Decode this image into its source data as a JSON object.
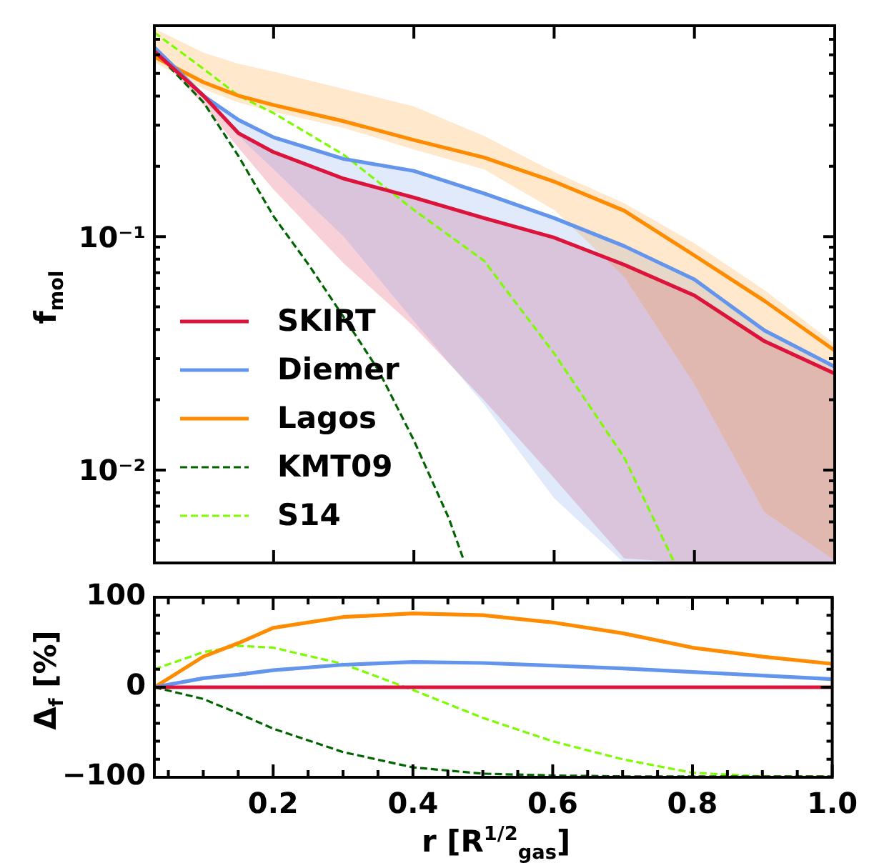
{
  "chart_data": [
    {
      "type": "line",
      "ylabel": "f$_{mol}$",
      "log": "y",
      "ylim": [
        0.004,
        0.8
      ],
      "yticks": [
        {
          "value": 0.005,
          "label": null
        },
        {
          "value": 0.006,
          "label": null
        },
        {
          "value": 0.007,
          "label": null
        },
        {
          "value": 0.008,
          "label": null
        },
        {
          "value": 0.009,
          "label": null
        },
        {
          "value": 0.01,
          "label": "10⁻²"
        },
        {
          "value": 0.02,
          "label": null
        },
        {
          "value": 0.03,
          "label": null
        },
        {
          "value": 0.04,
          "label": null
        },
        {
          "value": 0.05,
          "label": null
        },
        {
          "value": 0.06,
          "label": null
        },
        {
          "value": 0.07,
          "label": null
        },
        {
          "value": 0.08,
          "label": null
        },
        {
          "value": 0.09,
          "label": null
        },
        {
          "value": 0.1,
          "label": "10⁻¹"
        },
        {
          "value": 0.2,
          "label": null
        },
        {
          "value": 0.3,
          "label": null
        },
        {
          "value": 0.4,
          "label": null
        },
        {
          "value": 0.5,
          "label": null
        },
        {
          "value": 0.6,
          "label": null
        },
        {
          "value": 0.7,
          "label": null
        },
        {
          "value": 0.8,
          "label": null
        }
      ],
      "xlim": [
        0.03,
        1.0
      ],
      "xticks": [
        0.2,
        0.4,
        0.6,
        0.8,
        1
      ],
      "tick_labels": "y",
      "legend": "bottom left",
      "x": [
        0.03,
        0.1,
        0.15,
        0.2,
        0.3,
        0.4,
        0.5,
        0.6,
        0.7,
        0.8,
        0.9,
        1.0
      ],
      "series": [
        {
          "name": "SKIRT",
          "color": "#dc143c",
          "values": [
            0.621,
            0.401,
            0.277,
            0.23,
            0.177,
            0.147,
            0.12,
            0.099,
            0.0757,
            0.0559,
            0.0356,
            0.0259
          ],
          "lower": [
            0.62,
            0.366,
            0.24,
            0.159,
            0.0767,
            0.0412,
            0.0199,
            0.00924,
            0.00418,
            0.004,
            0.004,
            0.004
          ],
          "upper": [
            0.621,
            0.401,
            0.277,
            0.23,
            0.177,
            0.147,
            0.12,
            0.099,
            0.0757,
            0.0559,
            0.0356,
            0.0259
          ]
        },
        {
          "name": "Diemer",
          "color": "#6495ed",
          "values": [
            0.646,
            0.401,
            0.316,
            0.266,
            0.215,
            0.191,
            0.153,
            0.12,
            0.091,
            0.0655,
            0.0396,
            0.0277
          ],
          "lower": [
            0.64,
            0.391,
            0.27,
            0.194,
            0.1,
            0.0435,
            0.0191,
            0.00757,
            0.004,
            0.004,
            0.004,
            0.004
          ],
          "upper": [
            0.646,
            0.401,
            0.316,
            0.266,
            0.215,
            0.191,
            0.153,
            0.12,
            0.091,
            0.0655,
            0.0396,
            0.0277
          ]
        },
        {
          "name": "Lagos",
          "color": "#ff8c00",
          "values": [
            0.589,
            0.458,
            0.401,
            0.366,
            0.312,
            0.259,
            0.218,
            0.172,
            0.129,
            0.083,
            0.053,
            0.0325
          ],
          "lower": [
            0.558,
            0.429,
            0.375,
            0.342,
            0.292,
            0.236,
            0.194,
            0.13,
            0.0672,
            0.0233,
            0.0066,
            0.0041
          ],
          "upper": [
            0.778,
            0.613,
            0.55,
            0.509,
            0.429,
            0.361,
            0.27,
            0.189,
            0.139,
            0.0936,
            0.0589,
            0.0347
          ]
        },
        {
          "name": "KMT09",
          "color": "#006400",
          "line_style": "dashed",
          "x": [
            0.03,
            0.1,
            0.15,
            0.2,
            0.25,
            0.3,
            0.35,
            0.4,
            0.45,
            0.47
          ],
          "values": [
            0.621,
            0.376,
            0.221,
            0.122,
            0.0757,
            0.0452,
            0.0266,
            0.0134,
            0.0062,
            0.0042
          ]
        },
        {
          "name": "S14",
          "color": "#7cfc00",
          "line_style": "dashed",
          "x": [
            0.03,
            0.1,
            0.15,
            0.2,
            0.3,
            0.4,
            0.5,
            0.6,
            0.7,
            0.77
          ],
          "values": [
            0.748,
            0.523,
            0.401,
            0.338,
            0.224,
            0.13,
            0.0788,
            0.0316,
            0.0113,
            0.0041
          ]
        }
      ]
    },
    {
      "type": "line",
      "xlabel": "r [R$^{1/2}$$_{gas}$]",
      "ylabel": "Δ$_{f}$ [%]",
      "ylim": [
        -100,
        100
      ],
      "yticks": [
        {
          "value": -100,
          "label": "−100"
        },
        {
          "value": -80,
          "label": null
        },
        {
          "value": -60,
          "label": null
        },
        {
          "value": -40,
          "label": null
        },
        {
          "value": -20,
          "label": null
        },
        0,
        {
          "value": 20,
          "label": null
        },
        {
          "value": 40,
          "label": null
        },
        {
          "value": 60,
          "label": null
        },
        {
          "value": 80,
          "label": null
        },
        100
      ],
      "xlim": [
        0.03,
        1.0
      ],
      "xticks": [
        {
          "value": 0.05,
          "label": null
        },
        {
          "value": 0.1,
          "label": null
        },
        {
          "value": 0.15,
          "label": null
        },
        {
          "value": 0.2,
          "label": "0.2"
        },
        {
          "value": 0.25,
          "label": null
        },
        {
          "value": 0.3,
          "label": null
        },
        {
          "value": 0.35,
          "label": null
        },
        {
          "value": 0.4,
          "label": "0.4"
        },
        {
          "value": 0.45,
          "label": null
        },
        {
          "value": 0.5,
          "label": null
        },
        {
          "value": 0.55,
          "label": null
        },
        {
          "value": 0.6,
          "label": "0.6"
        },
        {
          "value": 0.65,
          "label": null
        },
        {
          "value": 0.7,
          "label": null
        },
        {
          "value": 0.75,
          "label": null
        },
        {
          "value": 0.8,
          "label": "0.8"
        },
        {
          "value": 0.85,
          "label": null
        },
        {
          "value": 0.9,
          "label": null
        },
        {
          "value": 0.95,
          "label": null
        },
        {
          "value": 1.0,
          "label": "1.0"
        }
      ],
      "x": [
        0.03,
        0.1,
        0.15,
        0.2,
        0.3,
        0.4,
        0.5,
        0.6,
        0.7,
        0.8,
        0.9,
        1.0
      ],
      "series": [
        {
          "color": "#dc143c",
          "values": [
            0,
            0,
            0,
            0,
            0,
            0,
            0,
            0,
            0,
            0,
            0,
            0
          ]
        },
        {
          "color": "#6495ed",
          "values": [
            0,
            10,
            14,
            19,
            25,
            28,
            27,
            24,
            21,
            17,
            13,
            9
          ]
        },
        {
          "color": "#ff8c00",
          "values": [
            0,
            34,
            49,
            66,
            78,
            82,
            80,
            72,
            60,
            44,
            34,
            26
          ]
        },
        {
          "color": "#006400",
          "line_style": "dashed",
          "values": [
            0,
            -13,
            -29,
            -46,
            -72,
            -89,
            -96,
            -98,
            -99,
            -99,
            -99,
            -99
          ]
        },
        {
          "color": "#7cfc00",
          "line_style": "dashed",
          "values": [
            20,
            39,
            46,
            44,
            26,
            -3,
            -34,
            -60,
            -80,
            -95,
            -99,
            -99
          ]
        }
      ]
    }
  ]
}
